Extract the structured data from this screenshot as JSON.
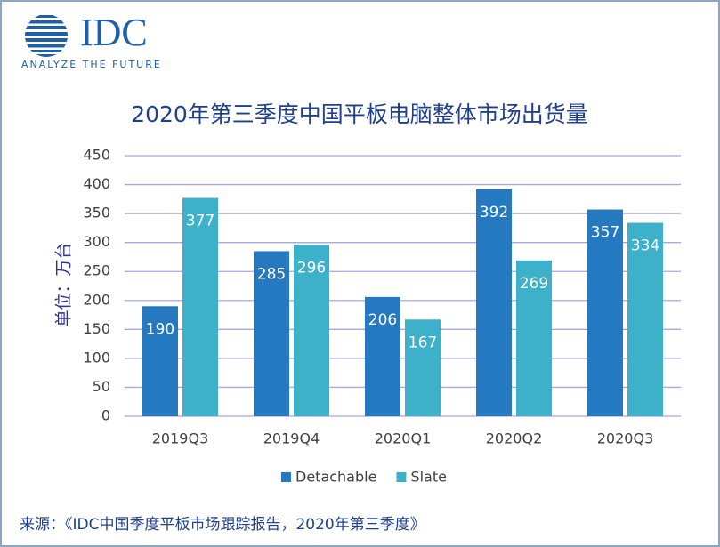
{
  "logo": {
    "text": "IDC",
    "tagline": "ANALYZE THE FUTURE"
  },
  "chart_data": {
    "type": "bar",
    "title": "2020年第三季度中国平板电脑整体市场出货量",
    "y_label": "单位：万台",
    "source": "来源：《IDC中国季度平板市场跟踪报告，2020年第三季度》",
    "categories": [
      "2019Q3",
      "2019Q4",
      "2020Q1",
      "2020Q2",
      "2020Q3"
    ],
    "series": [
      {
        "name": "Detachable",
        "color": "#2479c0",
        "values": [
          190,
          285,
          206,
          392,
          357
        ]
      },
      {
        "name": "Slate",
        "color": "#3cb1c9",
        "values": [
          377,
          296,
          167,
          269,
          334
        ]
      }
    ],
    "ylim": [
      0,
      450
    ],
    "yticks": [
      0,
      50,
      100,
      150,
      200,
      250,
      300,
      350,
      400,
      450
    ],
    "grid": true,
    "legend": "bottom"
  }
}
